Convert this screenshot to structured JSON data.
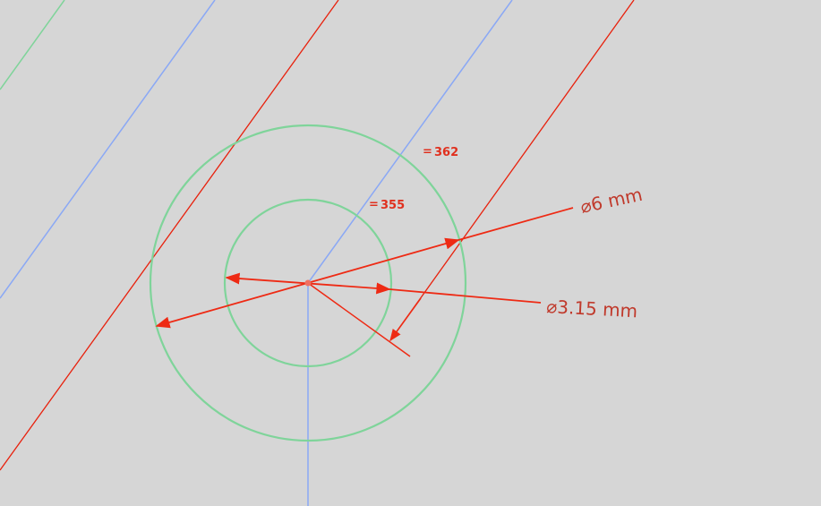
{
  "app": {
    "view": "sketch-canvas"
  },
  "colors": {
    "background": "#d6d6d6",
    "construction_green": "#7fd49a",
    "axis_blue": "#8aa8f5",
    "geometry_red": "#e8200c",
    "dimension_red": "#ee2a14",
    "dimension_text": "#c0392b"
  },
  "dimensions": {
    "outer_diameter": "⌀6 mm",
    "inner_diameter": "⌀3.15 mm"
  },
  "constraints": {
    "equal_362": {
      "symbol": "=",
      "number": "362"
    },
    "equal_355": {
      "symbol": "=",
      "number": "355"
    }
  }
}
